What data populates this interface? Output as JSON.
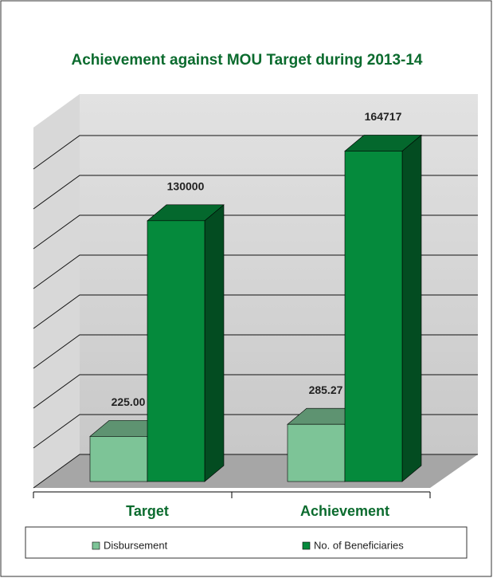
{
  "chart_data": {
    "type": "bar3d",
    "title": "Achievement against MOU Target during 2013-14",
    "categories": [
      "Target",
      "Achievement"
    ],
    "series": [
      {
        "name": "Disbursement",
        "color": "#7dc497",
        "axis": "y2",
        "values": [
          225,
          285.27
        ],
        "value_labels": [
          "225.00",
          "285.27"
        ]
      },
      {
        "name": "No. of Beneficiaries",
        "color": "#058a3c",
        "values": [
          130000,
          164717
        ]
      }
    ],
    "ylim": [
      0,
      180000
    ],
    "y2lim": [
      0,
      1800
    ],
    "grid": true,
    "legend": "bottom"
  }
}
